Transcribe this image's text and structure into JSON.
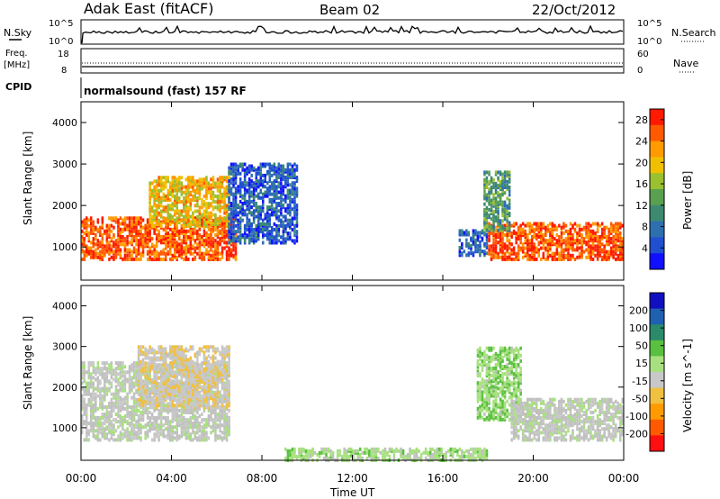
{
  "header": {
    "station": "Adak East (fitACF)",
    "beam": "Beam 02",
    "date": "22/Oct/2012"
  },
  "top_panels": {
    "nsky_label": "N.Sky",
    "nsky_ticks": [
      "10^5",
      "10^0"
    ],
    "nsearch_label": "N.Search",
    "nsearch_ticks": [
      "10^5",
      "10^0"
    ],
    "freq_label": "Freq.",
    "freq_unit": "[MHz]",
    "freq_ticks": [
      "18",
      "8"
    ],
    "nave_label": "Nave",
    "nave_ticks": [
      "60",
      "0"
    ],
    "cpid_label": "CPID",
    "cpid_text": "normalsound (fast) 157 RF"
  },
  "colors": {
    "power_scale": [
      "#1010ff",
      "#2050d0",
      "#2e6fb0",
      "#3d8a70",
      "#5aa050",
      "#9ac030",
      "#f0c000",
      "#ff9a00",
      "#ff5a00",
      "#ff1a00"
    ],
    "velocity_scale": [
      "#1010c0",
      "#2060b0",
      "#2a8a6a",
      "#5ac040",
      "#a8e080",
      "#c8c8c8",
      "#f0c040",
      "#ff9a00",
      "#ff5a00",
      "#ff1010"
    ],
    "ground_scatter": "#c0c0c0"
  },
  "chart_data": [
    {
      "type": "heatmap",
      "title": "",
      "xlabel": "Time UT",
      "ylabel": "Slant Range [km]",
      "x_ticks": [
        "00:00",
        "04:00",
        "08:00",
        "12:00",
        "16:00",
        "20:00",
        "00:00"
      ],
      "y_ticks": [
        "1000",
        "2000",
        "3000",
        "4000"
      ],
      "ylim": [
        200,
        4500
      ],
      "colorbar_label": "Power [dB]",
      "colorbar_ticks": [
        "4",
        "8",
        "12",
        "16",
        "20",
        "24",
        "28"
      ],
      "clim": [
        0,
        30
      ],
      "regions": [
        {
          "t_start": 0.0,
          "t_end": 6.8,
          "r_low": 700,
          "r_high": 1700,
          "value": 26
        },
        {
          "t_start": 3.0,
          "t_end": 6.5,
          "r_low": 1500,
          "r_high": 2700,
          "value": 20
        },
        {
          "t_start": 6.5,
          "t_end": 9.5,
          "r_low": 1100,
          "r_high": 3000,
          "value": 6
        },
        {
          "t_start": 16.7,
          "t_end": 18.0,
          "r_low": 800,
          "r_high": 1400,
          "value": 6
        },
        {
          "t_start": 18.0,
          "t_end": 24.0,
          "r_low": 700,
          "r_high": 1600,
          "value": 26
        },
        {
          "t_start": 17.8,
          "t_end": 19.0,
          "r_low": 1400,
          "r_high": 2800,
          "value": 12
        }
      ]
    },
    {
      "type": "heatmap",
      "title": "",
      "xlabel": "Time UT",
      "ylabel": "Slant Range [km]",
      "x_ticks": [
        "00:00",
        "04:00",
        "08:00",
        "12:00",
        "16:00",
        "20:00",
        "00:00"
      ],
      "y_ticks": [
        "1000",
        "2000",
        "3000",
        "4000"
      ],
      "ylim": [
        200,
        4500
      ],
      "colorbar_label": "Velocity [m s^-1]",
      "colorbar_ticks": [
        "200",
        "100",
        "50",
        "15",
        "-15",
        "-50",
        "-100",
        "-200"
      ],
      "clim": [
        -250,
        250
      ],
      "regions": [
        {
          "t_start": 0.0,
          "t_end": 6.5,
          "r_low": 700,
          "r_high": 2600,
          "value": 0
        },
        {
          "t_start": 2.5,
          "t_end": 6.5,
          "r_low": 1500,
          "r_high": 3000,
          "value": -40
        },
        {
          "t_start": 17.5,
          "t_end": 19.5,
          "r_low": 1200,
          "r_high": 3000,
          "value": 40
        },
        {
          "t_start": 19.0,
          "t_end": 24.0,
          "r_low": 700,
          "r_high": 1700,
          "value": 0
        },
        {
          "t_start": 9.0,
          "t_end": 18.0,
          "r_low": 200,
          "r_high": 500,
          "value": 30
        }
      ]
    }
  ]
}
